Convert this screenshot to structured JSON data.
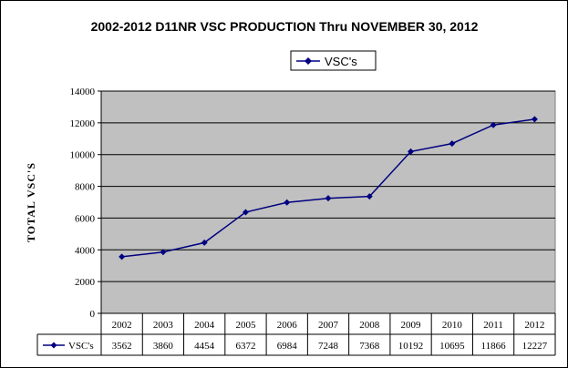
{
  "chart_data": {
    "type": "line",
    "title": "2002-2012 D11NR VSC PRODUCTION Thru NOVEMBER 30, 2012",
    "ylabel": "TOTAL VSC'S",
    "xlabel": "",
    "categories": [
      "2002",
      "2003",
      "2004",
      "2005",
      "2006",
      "2007",
      "2008",
      "2009",
      "2010",
      "2011",
      "2012"
    ],
    "series": [
      {
        "name": "VSC's",
        "values": [
          3562,
          3860,
          4454,
          6372,
          6984,
          7248,
          7368,
          10192,
          10695,
          11866,
          12227
        ],
        "color": "#000080",
        "marker": "diamond"
      }
    ],
    "ylim": [
      0,
      14000
    ],
    "yticks": [
      0,
      2000,
      4000,
      6000,
      8000,
      10000,
      12000,
      14000
    ],
    "grid": true,
    "legend_position": "top-center",
    "data_table": true,
    "plot_background": "#c0c0c0"
  }
}
